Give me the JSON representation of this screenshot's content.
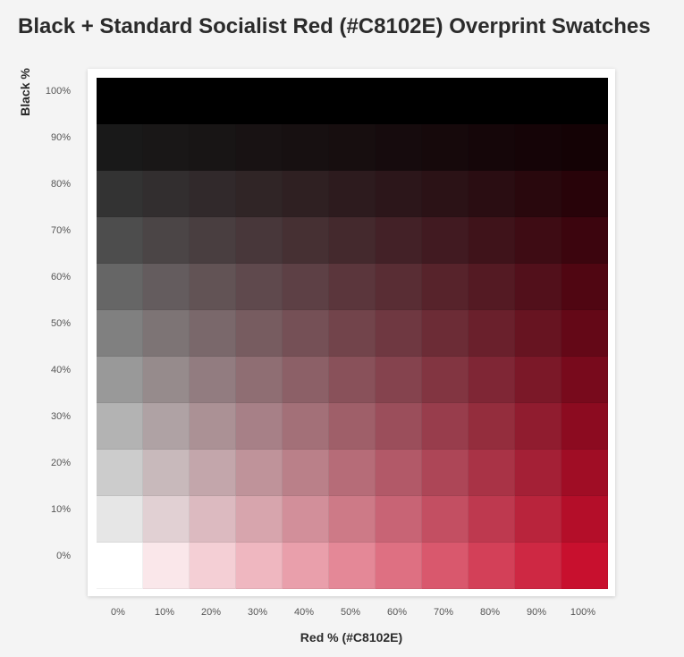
{
  "title": "Black + Standard Socialist Red (#C8102E) Overprint Swatches",
  "chart_data": {
    "type": "heatmap",
    "title": "Black + Standard Socialist Red (#C8102E) Overprint Swatches",
    "xlabel": "Red % (#C8102E)",
    "ylabel": "Black %",
    "x_categories": [
      "0%",
      "10%",
      "20%",
      "30%",
      "40%",
      "50%",
      "60%",
      "70%",
      "80%",
      "90%",
      "100%"
    ],
    "y_categories": [
      "100%",
      "90%",
      "80%",
      "70%",
      "60%",
      "50%",
      "40%",
      "30%",
      "20%",
      "10%",
      "0%"
    ],
    "x_values": [
      0,
      10,
      20,
      30,
      40,
      50,
      60,
      70,
      80,
      90,
      100
    ],
    "y_values": [
      100,
      90,
      80,
      70,
      60,
      50,
      40,
      30,
      20,
      10,
      0
    ],
    "red_color": "#C8102E",
    "black_color": "#000000",
    "paper_color": "#FFFFFF"
  }
}
